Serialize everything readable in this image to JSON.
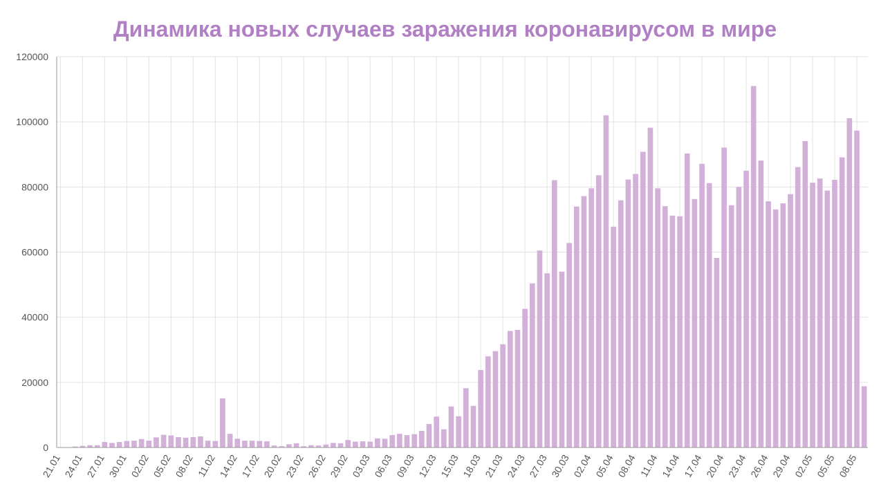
{
  "chart_data": {
    "type": "bar",
    "title": "Динамика новых случаев заражения коронавирусом в мире",
    "xlabel": "",
    "ylabel": "",
    "ylim": [
      0,
      120000
    ],
    "y_ticks": [
      0,
      20000,
      40000,
      60000,
      80000,
      100000,
      120000
    ],
    "grid": true,
    "bar_color": "#d3b0d9",
    "title_color": "#b07fc4",
    "x_tick_labels": [
      "21.01",
      "24.01",
      "27.01",
      "30.01",
      "02.02",
      "05.02",
      "08.02",
      "11.02",
      "14.02",
      "17.02",
      "20.02",
      "23.02",
      "26.02",
      "29.02",
      "03.03",
      "06.03",
      "09.03",
      "12.03",
      "15.03",
      "18.03",
      "21.03",
      "24.03",
      "27.03",
      "30.03",
      "02.04",
      "05.04",
      "08.04",
      "11.04",
      "14.04",
      "17.04",
      "20.04",
      "23.04",
      "26.04",
      "29.04",
      "02.05",
      "05.05",
      "08.05"
    ],
    "categories": [
      "21.01",
      "22.01",
      "23.01",
      "24.01",
      "25.01",
      "26.01",
      "27.01",
      "28.01",
      "29.01",
      "30.01",
      "31.01",
      "01.02",
      "02.02",
      "03.02",
      "04.02",
      "05.02",
      "06.02",
      "07.02",
      "08.02",
      "09.02",
      "10.02",
      "11.02",
      "12.02",
      "13.02",
      "14.02",
      "15.02",
      "16.02",
      "17.02",
      "18.02",
      "19.02",
      "20.02",
      "21.02",
      "22.02",
      "23.02",
      "24.02",
      "25.02",
      "26.02",
      "27.02",
      "28.02",
      "29.02",
      "01.03",
      "02.03",
      "03.03",
      "04.03",
      "05.03",
      "06.03",
      "07.03",
      "08.03",
      "09.03",
      "10.03",
      "11.03",
      "12.03",
      "13.03",
      "14.03",
      "15.03",
      "16.03",
      "17.03",
      "18.03",
      "19.03",
      "20.03",
      "21.03",
      "22.03",
      "23.03",
      "24.03",
      "25.03",
      "26.03",
      "27.03",
      "28.03",
      "29.03",
      "30.03",
      "31.03",
      "01.04",
      "02.04",
      "03.04",
      "04.04",
      "05.04",
      "06.04",
      "07.04",
      "08.04",
      "09.04",
      "10.04",
      "11.04",
      "12.04",
      "13.04",
      "14.04",
      "15.04",
      "16.04",
      "17.04",
      "18.04",
      "19.04",
      "20.04",
      "21.04",
      "22.04",
      "23.04",
      "24.04",
      "25.04",
      "26.04",
      "27.04",
      "28.04",
      "29.04",
      "30.04",
      "01.05",
      "02.05",
      "03.05",
      "04.05",
      "05.05",
      "06.05",
      "07.05",
      "08.05",
      "09.05"
    ],
    "values": [
      0,
      100,
      300,
      500,
      700,
      700,
      1700,
      1400,
      1700,
      2000,
      2100,
      2600,
      2100,
      3100,
      3900,
      3700,
      3200,
      3000,
      3200,
      3400,
      2100,
      2000,
      15100,
      4200,
      2700,
      2100,
      2100,
      2000,
      1900,
      600,
      400,
      1000,
      1300,
      400,
      700,
      600,
      900,
      1400,
      1300,
      2300,
      1800,
      1900,
      1800,
      2800,
      2700,
      3800,
      4200,
      3800,
      4100,
      5100,
      7200,
      9500,
      5600,
      12600,
      9600,
      18200,
      12800,
      23800,
      28000,
      29600,
      31700,
      35800,
      36100,
      42600,
      50400,
      60500,
      53500,
      82100,
      54000,
      62800,
      74000,
      77200,
      79600,
      83600,
      102000,
      67800,
      75900,
      82300,
      84000,
      90800,
      98200,
      79600,
      74100,
      71200,
      71000,
      90300,
      76300,
      87100,
      81200,
      58200,
      92100,
      74400,
      80000,
      85000,
      111000,
      88100,
      75600,
      73100,
      75000,
      77800,
      86100,
      94100,
      81300,
      82600,
      78900,
      82200,
      89100,
      101100,
      97300,
      18800
    ]
  }
}
